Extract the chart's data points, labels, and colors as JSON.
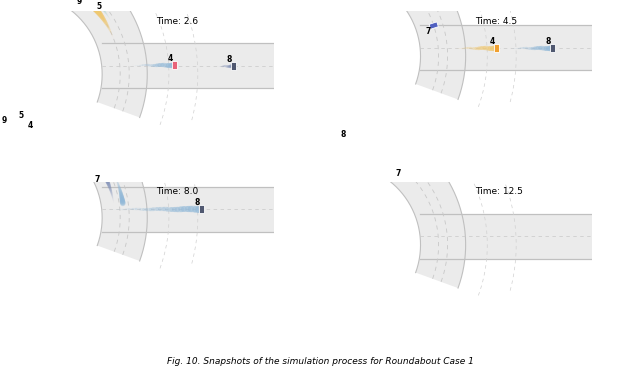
{
  "fig_title": "Fig. 10. Snapshots of the simulation process for Roundabout Case 1",
  "bg_color": "#ffffff",
  "road_fill": "#e8e8e8",
  "road_border": "#c0c0c0",
  "dashed_color": "#c8c8c8",
  "island_fill": "#f0f0f0",
  "panels": [
    {
      "time": "Time: 2.6",
      "xlim": [
        -4.5,
        8.0
      ],
      "ylim": [
        -5.5,
        3.5
      ]
    },
    {
      "time": "Time: 4.5",
      "xlim": [
        -4.5,
        8.0
      ],
      "ylim": [
        -6.5,
        2.5
      ]
    },
    {
      "time": "Time: 8.0",
      "xlim": [
        -4.5,
        8.0
      ],
      "ylim": [
        -7.0,
        2.0
      ]
    },
    {
      "time": "Time: 12.5",
      "xlim": [
        -4.5,
        8.0
      ],
      "ylim": [
        -5.5,
        3.5
      ]
    }
  ],
  "vehicle_colors": {
    "0": "#9b9bb0",
    "1": "#9b9bb0",
    "2": "#e8647a",
    "3": "#b06090",
    "4": "#e8647a",
    "5": "#f0a030",
    "6": "#9898a8",
    "7": "#5060c0",
    "8": "#505870",
    "9": "#20a0a0"
  },
  "trail_colors": {
    "pink": "#f0b0c0",
    "purple": "#c0a0d0",
    "teal": "#70c0b8",
    "orange": "#f0c870",
    "blue": "#90b8d8",
    "darkblue": "#8090b8",
    "red": "#f09090"
  }
}
